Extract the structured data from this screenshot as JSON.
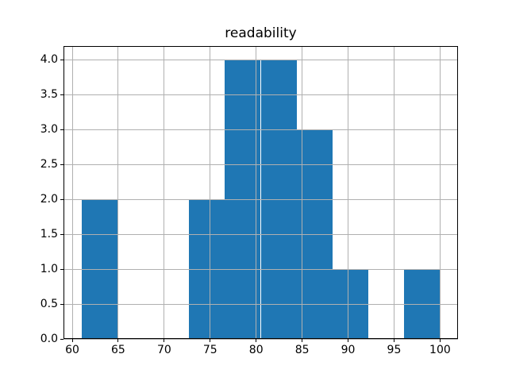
{
  "figure": {
    "background": "#ffffff"
  },
  "colors": {
    "bar": "#1f77b4",
    "grid": "#b0b0b0",
    "spine": "#000000",
    "tick": "#000000",
    "text": "#000000"
  },
  "chart_data": {
    "type": "bar",
    "subtype": "histogram",
    "title": "readability",
    "xlabel": "",
    "ylabel": "",
    "bin_edges": [
      61.0,
      64.9,
      68.8,
      72.7,
      76.6,
      80.5,
      84.4,
      88.3,
      92.2,
      96.1,
      100.0
    ],
    "counts": [
      2,
      0,
      0,
      2,
      4,
      4,
      3,
      1,
      0,
      1
    ],
    "xlim": [
      59.05,
      101.95
    ],
    "ylim": [
      0,
      4.2
    ],
    "xticks": [
      60,
      65,
      70,
      75,
      80,
      85,
      90,
      95,
      100
    ],
    "xtick_labels": [
      "60",
      "65",
      "70",
      "75",
      "80",
      "85",
      "90",
      "95",
      "100"
    ],
    "yticks": [
      0.0,
      0.5,
      1.0,
      1.5,
      2.0,
      2.5,
      3.0,
      3.5,
      4.0
    ],
    "ytick_labels": [
      "0.0",
      "0.5",
      "1.0",
      "1.5",
      "2.0",
      "2.5",
      "3.0",
      "3.5",
      "4.0"
    ],
    "grid": true,
    "grid_above_bars": true,
    "legend": null
  }
}
